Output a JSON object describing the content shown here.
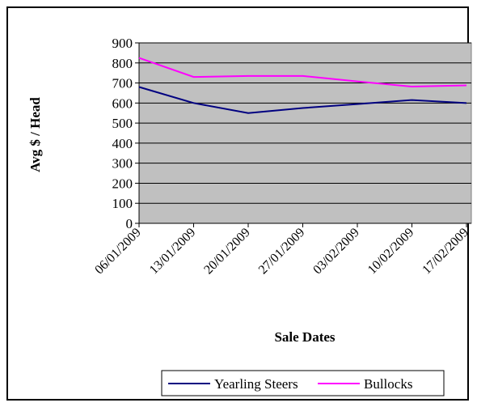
{
  "chart_data": {
    "type": "line",
    "title": "",
    "xlabel": "Sale Dates",
    "ylabel": "Avg $ / Head",
    "ylim": [
      0,
      900
    ],
    "yticks": [
      0,
      100,
      200,
      300,
      400,
      500,
      600,
      700,
      800,
      900
    ],
    "categories": [
      "06/01/2009",
      "13/01/2009",
      "20/01/2009",
      "27/01/2009",
      "03/02/2009",
      "10/02/2009",
      "17/02/2009"
    ],
    "series": [
      {
        "name": "Yearling Steers",
        "color": "#000080",
        "values": [
          680,
          600,
          550,
          575,
          595,
          615,
          600
        ]
      },
      {
        "name": "Bullocks",
        "color": "#ff00ff",
        "values": [
          825,
          730,
          735,
          735,
          708,
          682,
          688
        ]
      }
    ],
    "plot_background": "#c0c0c0",
    "grid": true,
    "legend_position": "bottom"
  }
}
